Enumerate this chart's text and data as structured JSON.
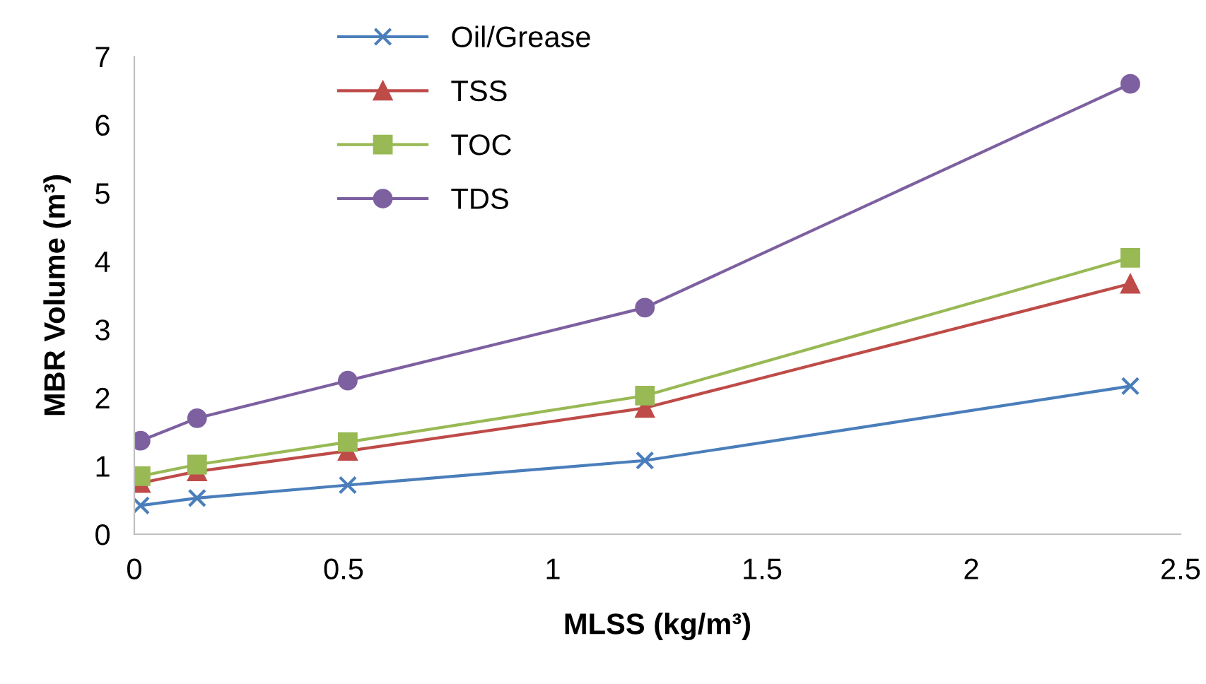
{
  "chart_data": {
    "type": "line",
    "xlabel": "MLSS (kg/m³)",
    "ylabel": "MBR Volume (m³)",
    "x": [
      0.015,
      0.15,
      0.51,
      1.22,
      2.38
    ],
    "series": [
      {
        "name": "Oil/Grease",
        "color": "#4a7ebb",
        "marker": "cross",
        "values": [
          0.42,
          0.53,
          0.72,
          1.08,
          2.17
        ]
      },
      {
        "name": "TSS",
        "color": "#be4b48",
        "marker": "triangle",
        "values": [
          0.75,
          0.92,
          1.22,
          1.85,
          3.67
        ]
      },
      {
        "name": "TOC",
        "color": "#98b954",
        "marker": "square",
        "values": [
          0.85,
          1.02,
          1.35,
          2.03,
          4.05
        ]
      },
      {
        "name": "TDS",
        "color": "#7d60a0",
        "marker": "circle",
        "values": [
          1.37,
          1.7,
          2.25,
          3.32,
          6.6
        ]
      }
    ],
    "xlim": [
      0,
      2.5
    ],
    "xticks": [
      0,
      0.5,
      1,
      1.5,
      2,
      2.5
    ],
    "ylim": [
      0,
      7
    ],
    "yticks": [
      0,
      1,
      2,
      3,
      4,
      5,
      6,
      7
    ],
    "grid": false,
    "legend": "top left"
  }
}
